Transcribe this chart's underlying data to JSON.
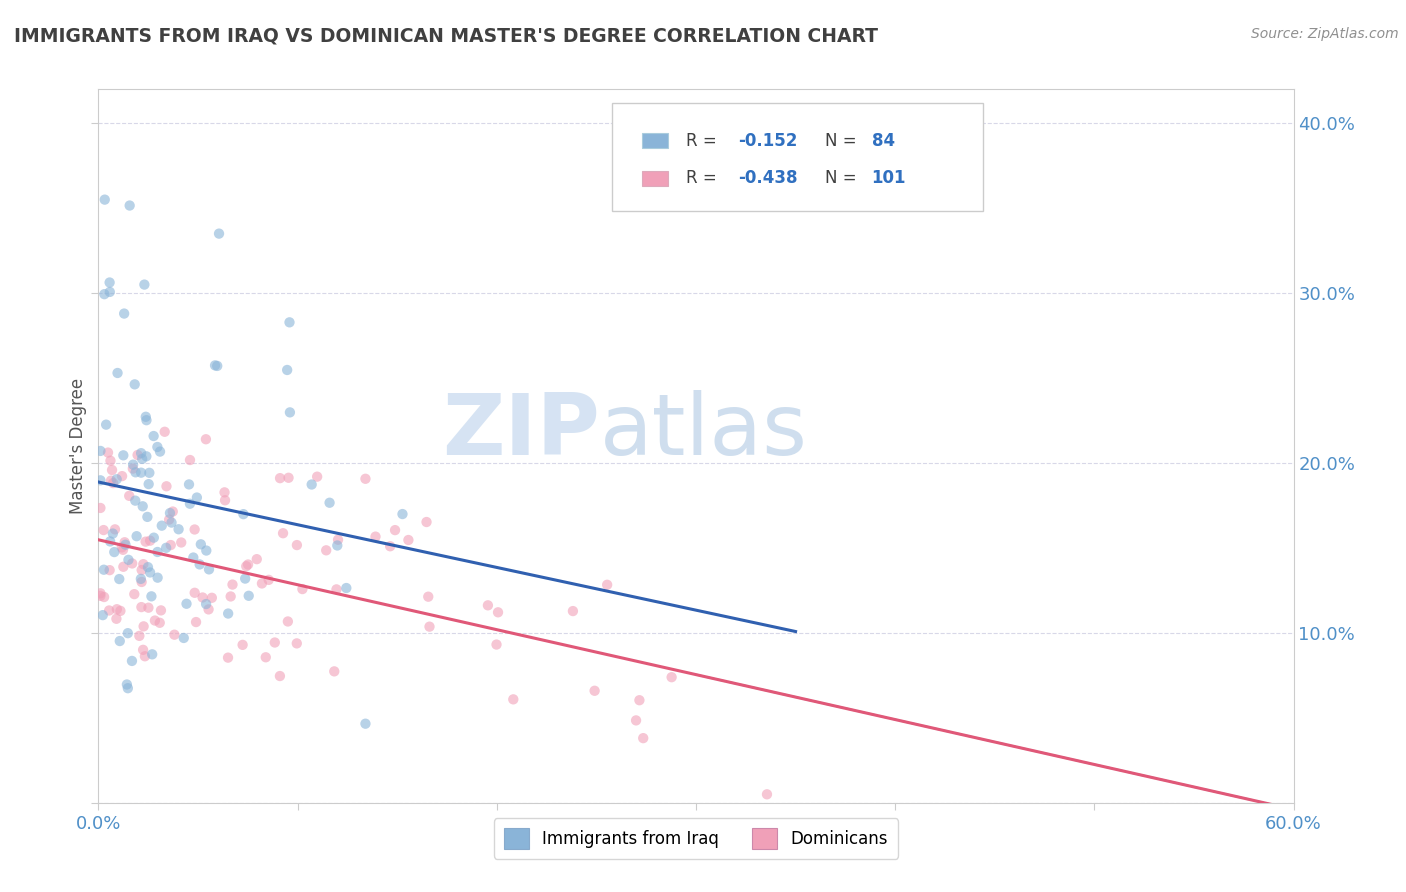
{
  "title": "IMMIGRANTS FROM IRAQ VS DOMINICAN MASTER'S DEGREE CORRELATION CHART",
  "source_text": "Source: ZipAtlas.com",
  "ylabel": "Master's Degree",
  "xlim": [
    0.0,
    0.6
  ],
  "ylim": [
    0.0,
    0.42
  ],
  "legend_r1": "-0.152",
  "legend_n1": "84",
  "legend_r2": "-0.438",
  "legend_n2": "101",
  "color_iraq": "#8ab4d8",
  "color_dom": "#f0a0b8",
  "color_trendline_iraq": "#3060b0",
  "color_trendline_dom": "#e05878",
  "color_trendline_ext": "#b8b8c8",
  "watermark_zip": "ZIP",
  "watermark_atlas": "atlas",
  "background_color": "#ffffff",
  "grid_color": "#d8d8e8",
  "title_color": "#404040",
  "axis_label_color": "#5090c8",
  "scatter_alpha": 0.6,
  "scatter_size": 55,
  "legend_text_color": "#404040",
  "legend_val_color": "#3070c0"
}
